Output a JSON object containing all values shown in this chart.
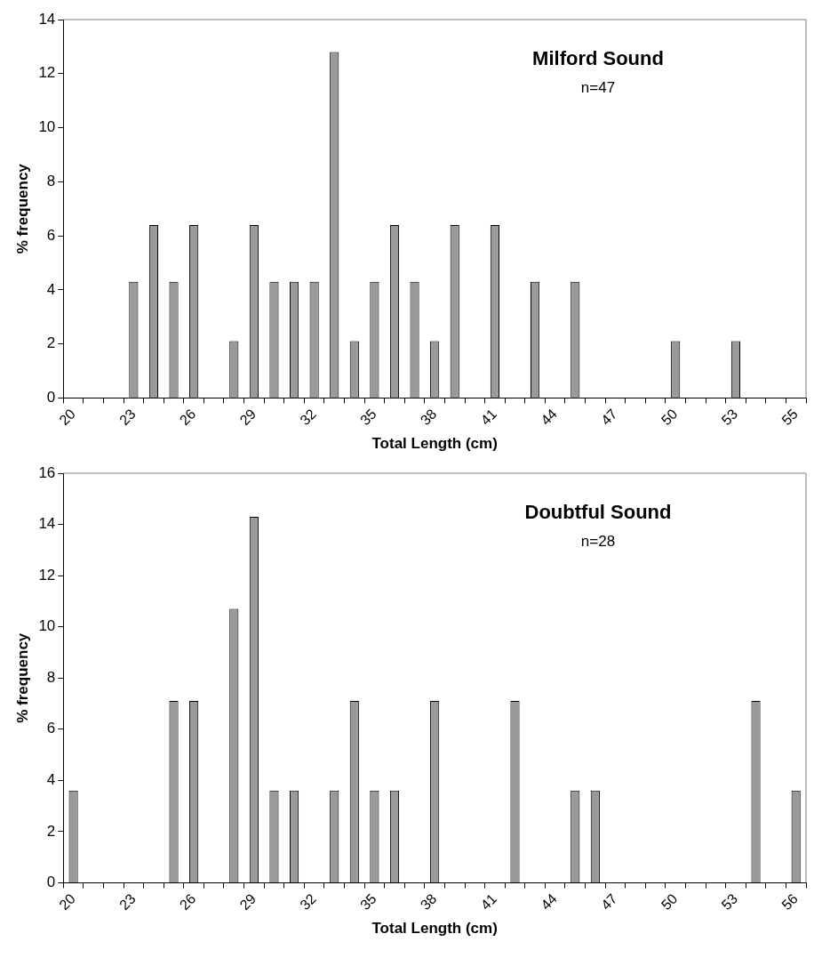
{
  "chart_data": [
    {
      "type": "bar",
      "title": "Milford Sound",
      "subtitle": "n=47",
      "xlabel": "Total Length (cm)",
      "ylabel": "% frequency",
      "categories": [
        "20",
        null,
        null,
        "23",
        null,
        null,
        "26",
        null,
        null,
        "29",
        null,
        null,
        "32",
        null,
        null,
        "35",
        null,
        null,
        "38",
        null,
        null,
        "41",
        null,
        null,
        "44",
        null,
        null,
        "47",
        null,
        null,
        "50",
        null,
        null,
        "53",
        null,
        null,
        "55"
      ],
      "values": [
        0,
        0,
        0,
        4.3,
        6.4,
        4.3,
        6.4,
        0,
        2.1,
        6.4,
        4.3,
        4.3,
        4.3,
        12.8,
        2.1,
        4.3,
        6.4,
        4.3,
        2.1,
        6.4,
        0,
        6.4,
        0,
        4.3,
        0,
        4.3,
        0,
        0,
        0,
        0,
        2.1,
        0,
        0,
        2.1,
        0,
        0,
        0
      ],
      "color": "#9a9a9a",
      "ylim": [
        0,
        14
      ],
      "yticks": [
        0,
        2,
        4,
        6,
        8,
        10,
        12,
        14
      ],
      "grid": false
    },
    {
      "type": "bar",
      "title": "Doubtful Sound",
      "subtitle": "n=28",
      "xlabel": "Total Length (cm)",
      "ylabel": "% frequency",
      "categories": [
        "20",
        null,
        null,
        "23",
        null,
        null,
        "26",
        null,
        null,
        "29",
        null,
        null,
        "32",
        null,
        null,
        "35",
        null,
        null,
        "38",
        null,
        null,
        "41",
        null,
        null,
        "44",
        null,
        null,
        "47",
        null,
        null,
        "50",
        null,
        null,
        "53",
        null,
        null,
        "56"
      ],
      "values": [
        3.6,
        0,
        0,
        0,
        0,
        7.1,
        7.1,
        0,
        10.7,
        14.3,
        3.6,
        3.6,
        0,
        3.6,
        7.1,
        3.6,
        3.6,
        0,
        7.1,
        0,
        0,
        0,
        7.1,
        0,
        0,
        3.6,
        3.6,
        0,
        0,
        0,
        0,
        0,
        0,
        0,
        7.1,
        0,
        3.6
      ],
      "color": "#9a9a9a",
      "ylim": [
        0,
        16
      ],
      "yticks": [
        0,
        2,
        4,
        6,
        8,
        10,
        12,
        14,
        16
      ],
      "grid": false
    }
  ]
}
